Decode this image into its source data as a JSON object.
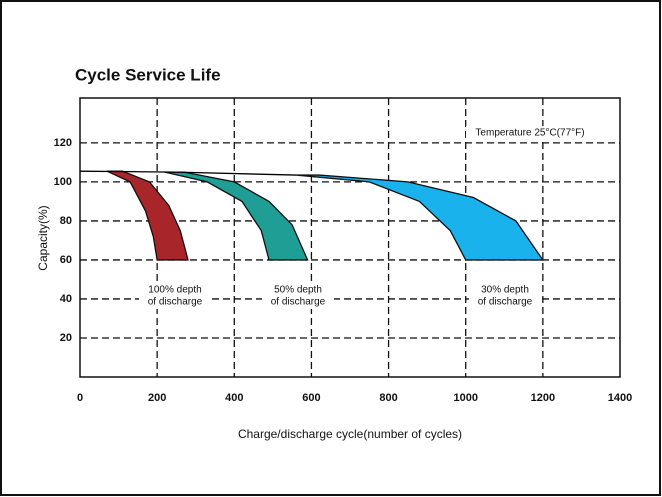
{
  "chart_data": {
    "type": "area",
    "title": "Cycle Service Life",
    "x_label": "Charge/discharge cycle(number of cycles)",
    "y_label": "Capacity(%)",
    "xlim": [
      0,
      1400
    ],
    "xticks": [
      0,
      200,
      400,
      600,
      800,
      1000,
      1200,
      1400
    ],
    "ylim": [
      0,
      143
    ],
    "yticks": [
      20,
      40,
      60,
      80,
      100,
      120
    ],
    "grid": true,
    "line": {
      "color": "#000000",
      "x": [
        0,
        250,
        560
      ],
      "y": [
        105.5,
        105,
        103.5
      ]
    },
    "series": [
      {
        "color": "#a8262a",
        "x": [
          70,
          130,
          170,
          190,
          200,
          280,
          260,
          230,
          180,
          110
        ],
        "y": [
          105.5,
          100,
          85,
          72,
          60,
          60,
          75,
          88,
          100,
          105.5
        ]
      },
      {
        "color": "#1f9e96",
        "x": [
          220,
          330,
          420,
          470,
          490,
          590,
          550,
          490,
          400,
          270
        ],
        "y": [
          105,
          100,
          90,
          75,
          60,
          60,
          78,
          90,
          100,
          105
        ]
      },
      {
        "color": "#19b2ec",
        "x": [
          560,
          750,
          880,
          960,
          1000,
          1200,
          1130,
          1020,
          850,
          620
        ],
        "y": [
          103.5,
          100,
          90,
          75,
          60,
          60,
          80,
          92,
          100,
          103.5
        ]
      }
    ],
    "annotations": [
      {
        "lines": [
          "100% depth",
          "of discharge"
        ]
      },
      {
        "lines": [
          "50% depth",
          "of discharge"
        ]
      },
      {
        "lines": [
          "30% depth",
          "of discharge"
        ]
      },
      {
        "lines": [
          "Temperature 25°C(77°F)"
        ]
      }
    ]
  }
}
